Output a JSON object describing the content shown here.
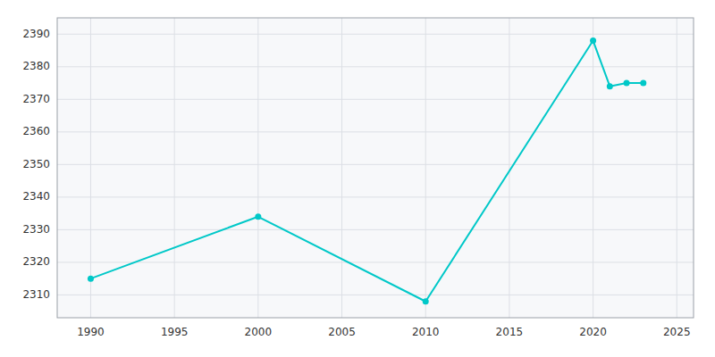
{
  "chart_data": {
    "type": "line",
    "x": [
      1990,
      2000,
      2010,
      2020,
      2021,
      2022,
      2023
    ],
    "values": [
      2315,
      2334,
      2308,
      2388,
      2374,
      2375,
      2375
    ],
    "color": "#00C8C8",
    "marker": "o",
    "xlim": [
      1988,
      2026
    ],
    "ylim": [
      2303,
      2395
    ],
    "xticks": [
      1990,
      1995,
      2000,
      2005,
      2010,
      2015,
      2020,
      2025
    ],
    "yticks": [
      2310,
      2320,
      2330,
      2340,
      2350,
      2360,
      2370,
      2380,
      2390
    ],
    "grid": true
  }
}
